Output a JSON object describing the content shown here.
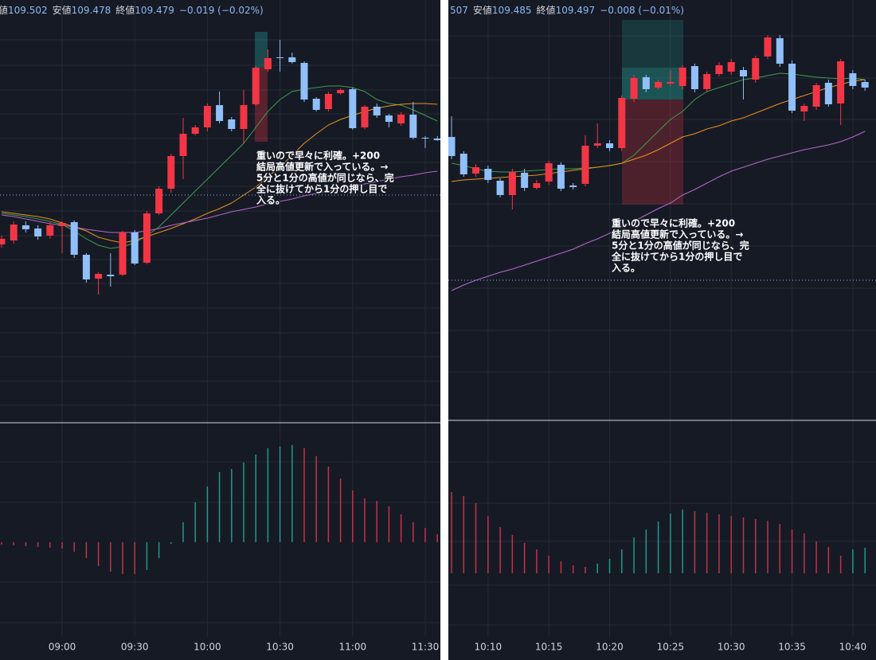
{
  "chart_data": [
    {
      "type": "candlestick",
      "header": [
        {
          "label": "値",
          "value": 109.502
        },
        {
          "label": "安値",
          "value": 109.478
        },
        {
          "label": "終値",
          "value": 109.479
        }
      ],
      "change": "−0.019 (−0.02%)",
      "categories": [
        null,
        null,
        null,
        null,
        null,
        "09:00",
        null,
        null,
        null,
        null,
        null,
        "09:30",
        null,
        null,
        null,
        null,
        null,
        "10:00",
        null,
        null,
        null,
        null,
        null,
        "10:30",
        null,
        null,
        null,
        null,
        null,
        "11:00",
        null,
        null,
        null,
        null,
        null,
        "11:30",
        null
      ],
      "open": [
        109.348,
        109.353,
        109.372,
        109.368,
        109.359,
        109.371,
        109.376,
        109.335,
        109.305,
        109.31,
        109.31,
        109.363,
        109.325,
        109.387,
        109.418,
        109.459,
        109.487,
        109.495,
        109.523,
        109.505,
        109.493,
        109.524,
        109.568,
        109.583,
        109.583,
        109.576,
        109.531,
        109.518,
        109.538,
        109.543,
        109.495,
        109.521,
        109.51,
        109.5,
        109.511,
        109.482,
        109.481
      ],
      "high": [
        109.359,
        109.377,
        109.377,
        109.372,
        109.376,
        109.377,
        109.378,
        109.337,
        109.313,
        109.337,
        109.365,
        109.366,
        109.39,
        109.421,
        109.462,
        109.507,
        109.498,
        109.525,
        109.54,
        109.508,
        109.542,
        109.572,
        109.593,
        109.605,
        109.589,
        109.578,
        109.533,
        109.54,
        109.544,
        109.545,
        109.523,
        109.525,
        109.512,
        109.514,
        109.527,
        109.484,
        109.484
      ],
      "low": [
        109.344,
        109.349,
        109.363,
        109.354,
        109.355,
        109.337,
        109.331,
        109.3,
        109.285,
        109.295,
        109.308,
        109.322,
        109.323,
        109.385,
        109.413,
        109.43,
        109.485,
        109.49,
        109.5,
        109.49,
        109.475,
        109.522,
        109.565,
        109.565,
        109.575,
        109.527,
        109.515,
        109.515,
        109.536,
        109.492,
        109.493,
        109.507,
        109.495,
        109.497,
        109.48,
        109.469,
        109.478
      ],
      "close": [
        109.355,
        109.373,
        109.367,
        109.358,
        109.372,
        109.375,
        109.335,
        109.304,
        109.311,
        109.308,
        109.363,
        109.324,
        109.387,
        109.418,
        109.459,
        109.487,
        109.495,
        109.522,
        109.503,
        109.493,
        109.523,
        109.57,
        109.582,
        109.582,
        109.577,
        109.53,
        109.517,
        109.537,
        109.542,
        109.494,
        109.521,
        109.51,
        109.502,
        109.511,
        109.482,
        109.481,
        109.479
      ],
      "ylim": [
        109.125,
        109.655
      ],
      "up_color": "#f23645",
      "down_color": "#90bff9",
      "lines": [
        {
          "color": "#3f9b4f",
          "values": [
            109.387,
            109.385,
            109.383,
            109.38,
            109.377,
            109.373,
            109.365,
            109.355,
            109.347,
            109.343,
            109.345,
            109.35,
            109.359,
            109.37,
            109.385,
            109.4,
            109.415,
            109.43,
            109.445,
            109.46,
            109.475,
            109.495,
            109.515,
            109.53,
            109.54,
            109.543,
            109.545,
            109.547,
            109.547,
            109.545,
            109.54,
            109.53,
            109.525,
            109.523,
            109.517,
            109.51,
            109.503
          ]
        },
        {
          "color": "#e8921c",
          "values": [
            109.389,
            109.387,
            109.385,
            109.383,
            109.38,
            109.375,
            109.37,
            109.365,
            109.357,
            109.353,
            109.35,
            109.353,
            109.358,
            109.363,
            109.368,
            109.374,
            109.38,
            109.387,
            109.393,
            109.4,
            109.41,
            109.42,
            109.433,
            109.445,
            109.46,
            109.475,
            109.487,
            109.498,
            109.505,
            109.51,
            109.515,
            109.519,
            109.522,
            109.524,
            109.525,
            109.525,
            109.524
          ]
        },
        {
          "color": "#b468cc",
          "values": [
            109.385,
            109.383,
            109.38,
            109.377,
            109.374,
            109.372,
            109.37,
            109.367,
            109.365,
            109.363,
            109.363,
            109.363,
            109.365,
            109.368,
            109.372,
            109.375,
            109.378,
            109.381,
            109.385,
            109.389,
            109.392,
            109.395,
            109.399,
            109.402,
            109.405,
            109.409,
            109.412,
            109.415,
            109.418,
            109.421,
            109.424,
            109.427,
            109.43,
            109.433,
            109.435,
            109.438,
            109.44
          ]
        }
      ],
      "histogram": {
        "values": [
          -3,
          -4,
          -5,
          -6,
          -7,
          -8,
          -12,
          -20,
          -30,
          -37,
          -40,
          -40,
          -35,
          -20,
          -2,
          25,
          50,
          70,
          88,
          92,
          100,
          110,
          118,
          120,
          122,
          118,
          108,
          95,
          80,
          65,
          55,
          52,
          45,
          35,
          25,
          18,
          10
        ],
        "ylim": [
          -149,
          149
        ],
        "up_color": "#1f9a8a",
        "down_color": "#c2334a"
      },
      "annotation": [
        "重いので早々に利確。+200",
        "結局高値更新で入っている。→",
        "5分と1分の高値が同じなら、完",
        "全に抜けてから1分の押し目で",
        "入る。"
      ]
    },
    {
      "type": "candlestick",
      "header": [
        {
          "value": 507
        },
        {
          "label": "安値",
          "value": 109.485
        },
        {
          "label": "終値",
          "value": 109.497
        }
      ],
      "change": "−0.008 (−0.01%)",
      "categories": [
        null,
        null,
        null,
        "10:10",
        null,
        null,
        null,
        null,
        "10:15",
        null,
        null,
        null,
        null,
        "10:20",
        null,
        null,
        null,
        null,
        "10:25",
        null,
        null,
        null,
        null,
        "10:30",
        null,
        null,
        null,
        null,
        "10:35",
        null,
        null,
        null,
        null,
        "10:40",
        null
      ],
      "open": [
        109.466,
        109.4555,
        109.443,
        109.446,
        109.4385,
        109.4295,
        109.4435,
        109.434,
        109.438,
        109.4485,
        109.4355,
        109.4365,
        109.4605,
        109.462,
        109.459,
        109.49,
        109.5035,
        109.497,
        109.4995,
        109.498,
        109.5105,
        109.496,
        109.5055,
        109.507,
        109.508,
        109.502,
        109.5165,
        109.528,
        109.512,
        109.482,
        109.485,
        109.5,
        109.487,
        109.506,
        109.5005
      ],
      "high": [
        109.479,
        109.457,
        109.449,
        109.448,
        109.44,
        109.446,
        109.446,
        109.439,
        109.451,
        109.45,
        109.437,
        109.467,
        109.4745,
        109.464,
        109.492,
        109.505,
        109.505,
        109.502,
        109.508,
        109.511,
        109.512,
        109.507,
        109.513,
        109.515,
        109.51,
        109.517,
        109.53,
        109.53,
        109.514,
        109.487,
        109.5,
        109.502,
        109.515,
        109.508,
        109.502
      ],
      "low": [
        109.452,
        109.441,
        109.441,
        109.437,
        109.428,
        109.4205,
        109.432,
        109.433,
        109.436,
        109.432,
        109.433,
        109.435,
        109.459,
        109.457,
        109.457,
        109.488,
        109.494,
        109.496,
        109.498,
        109.496,
        109.494,
        109.494,
        109.504,
        109.505,
        109.4895,
        109.5,
        109.515,
        109.51,
        109.481,
        109.476,
        109.483,
        109.485,
        109.4735,
        109.496,
        109.495
      ],
      "close": [
        109.454,
        109.4425,
        109.447,
        109.439,
        109.4295,
        109.444,
        109.434,
        109.437,
        109.4495,
        109.4335,
        109.4345,
        109.4605,
        109.462,
        109.459,
        109.4905,
        109.503,
        109.496,
        109.5005,
        109.5005,
        109.5095,
        109.496,
        109.5055,
        109.511,
        109.513,
        109.504,
        109.5155,
        109.5285,
        109.512,
        109.4825,
        109.4855,
        109.4985,
        109.4865,
        109.5135,
        109.498,
        109.497
      ],
      "ylim": [
        109.288,
        109.552
      ],
      "up_color": "#f23645",
      "down_color": "#90bff9",
      "lines": [
        {
          "color": "#3f9b4f",
          "values": [
            109.4495,
            109.448,
            109.446,
            109.4445,
            109.444,
            109.444,
            109.4445,
            109.445,
            109.4455,
            109.446,
            109.446,
            109.4465,
            109.447,
            109.448,
            109.4495,
            109.4545,
            109.462,
            109.4695,
            109.477,
            109.482,
            109.4895,
            109.4945,
            109.497,
            109.4995,
            109.502,
            109.503,
            109.5045,
            109.506,
            109.5055,
            109.5045,
            109.5035,
            109.503,
            109.5025,
            109.503,
            109.502
          ]
        },
        {
          "color": "#e8921c",
          "values": [
            109.438,
            109.439,
            109.4395,
            109.44,
            109.4405,
            109.441,
            109.4415,
            109.442,
            109.443,
            109.444,
            109.445,
            109.446,
            109.447,
            109.448,
            109.4495,
            109.452,
            109.4545,
            109.458,
            109.462,
            109.466,
            109.468,
            109.471,
            109.473,
            109.476,
            109.478,
            109.481,
            109.484,
            109.487,
            109.4895,
            109.492,
            109.4945,
            109.497,
            109.499,
            109.501,
            109.502
          ]
        },
        {
          "color": "#b468cc",
          "values": [
            109.3695,
            109.373,
            109.376,
            109.3785,
            109.381,
            109.383,
            109.3855,
            109.388,
            109.3905,
            109.393,
            109.3955,
            109.399,
            109.402,
            109.4055,
            109.4095,
            109.413,
            109.417,
            109.421,
            109.4245,
            109.4295,
            109.433,
            109.437,
            109.441,
            109.4445,
            109.447,
            109.4495,
            109.452,
            109.454,
            109.456,
            109.458,
            109.4595,
            109.461,
            109.463,
            109.466,
            109.4695
          ]
        }
      ],
      "histogram": {
        "values": [
          102,
          97,
          88,
          72,
          58,
          48,
          38,
          30,
          22,
          15,
          10,
          8,
          12,
          18,
          30,
          45,
          55,
          65,
          75,
          80,
          78,
          76,
          74,
          72,
          70,
          68,
          66,
          62,
          55,
          50,
          40,
          33,
          22,
          30,
          32
        ],
        "ylim": [
          -110,
          188
        ],
        "up_color": "#1f9a8a",
        "down_color": "#c2334a"
      },
      "annotation": [
        "重いので早々に利確。+200",
        "結局高値更新で入っている。→",
        "5分と1分の高値が同じなら、完",
        "全に抜けてから1分の押し目で",
        "入る。"
      ]
    }
  ]
}
